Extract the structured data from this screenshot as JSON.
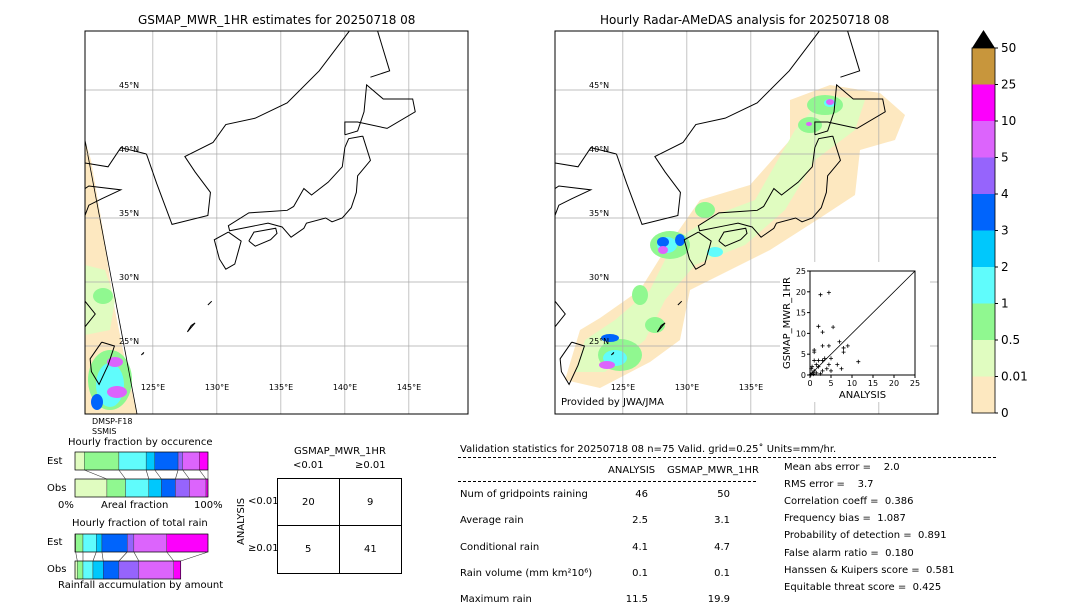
{
  "left_map": {
    "title": "GSMAP_MWR_1HR estimates for 20250718 08",
    "sensor_line1": "DMSP-F18",
    "sensor_line2": "SSMIS"
  },
  "right_map": {
    "title": "Hourly Radar-AMeDAS analysis for 20250718 08",
    "credit": "Provided by JWA/JMA"
  },
  "map_axes": {
    "lat_labels": [
      "45°N",
      "40°N",
      "35°N",
      "30°N",
      "25°N"
    ],
    "lat_values": [
      45,
      40,
      35,
      30,
      25
    ],
    "lon_labels": [
      "125°E",
      "130°E",
      "135°E",
      "140°E",
      "145°E"
    ],
    "lon_values": [
      125,
      130,
      135,
      140,
      145
    ]
  },
  "colorbar": {
    "labels": [
      "50",
      "25",
      "10",
      "5",
      "4",
      "3",
      "2",
      "1",
      "0.5",
      "0.01",
      "0"
    ],
    "colors": [
      "#fde8c0",
      "#e0fcc0",
      "#90f890",
      "#60fcfc",
      "#00c8fc",
      "#0064fc",
      "#9664fc",
      "#dc64fc",
      "#fc00fc",
      "#c8963c"
    ],
    "extend_color": "#000000"
  },
  "chart_data": [
    {
      "type": "scatter",
      "xlabel": "ANALYSIS",
      "ylabel": "GSMAP_MWR_1HR",
      "xlim": [
        0,
        25
      ],
      "ylim": [
        0,
        25
      ],
      "xticks": [
        "0",
        "5",
        "10",
        "15",
        "20",
        "25"
      ],
      "yticks": [
        "0",
        "5",
        "10",
        "15",
        "20",
        "25"
      ],
      "points": [
        [
          2.5,
          19.3
        ],
        [
          4.5,
          19.8
        ],
        [
          2,
          11.7
        ],
        [
          5.5,
          11.5
        ],
        [
          3,
          10.3
        ],
        [
          1,
          6
        ],
        [
          1,
          5.5
        ],
        [
          3,
          7
        ],
        [
          4.5,
          7
        ],
        [
          7,
          8
        ],
        [
          9,
          7
        ],
        [
          8,
          6.5
        ],
        [
          8,
          5.5
        ],
        [
          6.5,
          2.5
        ],
        [
          7.5,
          1.5
        ],
        [
          11.5,
          3.2
        ],
        [
          5,
          1
        ],
        [
          2,
          3.5
        ],
        [
          3,
          3.5
        ],
        [
          3.5,
          4
        ],
        [
          1,
          3.5
        ],
        [
          0.5,
          2
        ],
        [
          1,
          1
        ],
        [
          2,
          2
        ],
        [
          1.5,
          0.5
        ],
        [
          0.2,
          0.1
        ],
        [
          0.5,
          0.5
        ],
        [
          3,
          1
        ],
        [
          4,
          1.5
        ],
        [
          4.5,
          2.5
        ],
        [
          0.3,
          1.5
        ],
        [
          2.5,
          0.3
        ],
        [
          5,
          4
        ],
        [
          1.5,
          2.5
        ],
        [
          0.8,
          0.2
        ]
      ]
    },
    {
      "type": "bar",
      "title": "Hourly fraction by occurence",
      "xlabel": "Areal fraction",
      "x_min_label": "0%",
      "x_max_label": "100%",
      "categories": [
        "Est",
        "Obs"
      ],
      "series_colors": [
        "#e0fcc0",
        "#90f890",
        "#60fcfc",
        "#00c8fc",
        "#0064fc",
        "#9664fc",
        "#dc64fc",
        "#fc00fc"
      ],
      "values_percent": {
        "Est": [
          7,
          26,
          20.5,
          6.5,
          17.5,
          3.5,
          12.5,
          6.5
        ],
        "Obs": [
          24,
          14,
          17.5,
          9.5,
          10.5,
          10.5,
          12.5,
          1.5
        ]
      }
    },
    {
      "type": "bar",
      "title": "Hourly fraction of total rain",
      "xlabel": "Rainfall accumulation by amount",
      "categories": [
        "Est",
        "Obs"
      ],
      "series_colors": [
        "#e0fcc0",
        "#90f890",
        "#60fcfc",
        "#00c8fc",
        "#0064fc",
        "#9664fc",
        "#dc64fc",
        "#fc00fc"
      ],
      "values_percent": {
        "Est": [
          0.5,
          5.5,
          10,
          4.25,
          19,
          5,
          24.75,
          31
        ],
        "Obs": [
          1.75,
          4.25,
          7.5,
          7.75,
          11.75,
          15,
          26.25,
          5.25
        ]
      }
    }
  ],
  "contingency": {
    "title": "GSMAP_MWR_1HR",
    "col_labels": [
      "<0.01",
      "≥0.01"
    ],
    "row_axis": "ANALYSIS",
    "row_labels": [
      "<0.01",
      "≥0.01"
    ],
    "cells": [
      [
        "20",
        "9"
      ],
      [
        "5",
        "41"
      ]
    ]
  },
  "stats": {
    "header": "Validation statistics for 20250718 08  n=75 Valid. grid=0.25˚ Units=mm/hr.",
    "col_headers": [
      "ANALYSIS",
      "GSMAP_MWR_1HR"
    ],
    "rows": [
      {
        "label": "Num of gridpoints raining",
        "a": "46",
        "b": "50"
      },
      {
        "label": "Average rain",
        "a": "2.5",
        "b": "3.1"
      },
      {
        "label": "Conditional rain",
        "a": "4.1",
        "b": "4.7"
      },
      {
        "label": "Rain volume (mm km²10⁶)",
        "a": "0.1",
        "b": "0.1"
      },
      {
        "label": "Maximum rain",
        "a": "11.5",
        "b": "19.9"
      }
    ],
    "scores": [
      "Mean abs error =    2.0",
      "RMS error =    3.7",
      "Correlation coeff =  0.386",
      "Frequency bias =  1.087",
      "Probability of detection =  0.891",
      "False alarm ratio =  0.180",
      "Hanssen & Kuipers score =  0.581",
      "Equitable threat score =  0.425"
    ]
  }
}
